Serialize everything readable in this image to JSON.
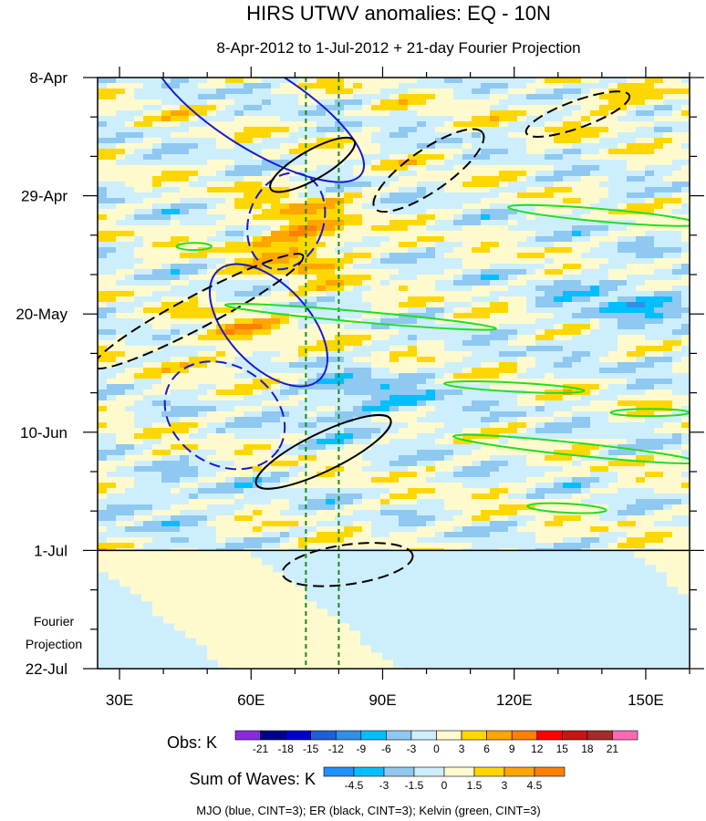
{
  "chart_data": {
    "type": "heatmap",
    "title": "HIRS UTWV anomalies: EQ - 10N",
    "subtitle": "8-Apr-2012 to 1-Jul-2012 + 21-day Fourier Projection",
    "xlim": [
      25,
      160
    ],
    "x_ticks": [
      {
        "value": 30,
        "label": "30E"
      },
      {
        "value": 60,
        "label": "60E"
      },
      {
        "value": 90,
        "label": "90E"
      },
      {
        "value": 120,
        "label": "120E"
      },
      {
        "value": 150,
        "label": "150E"
      }
    ],
    "y_ticks": [
      {
        "day": 0,
        "label": "8-Apr"
      },
      {
        "day": 21,
        "label": "29-Apr"
      },
      {
        "day": 42,
        "label": "20-May"
      },
      {
        "day": 63,
        "label": "10-Jun"
      },
      {
        "day": 84,
        "label": "1-Jul"
      },
      {
        "day": 105,
        "label": "22-Jul"
      }
    ],
    "projection_start_day": 84,
    "projection_label_line1": "Fourier",
    "projection_label_line2": "Projection",
    "reference_longitudes": [
      72.5,
      80
    ],
    "obs_colorbar": {
      "label": "Obs: K",
      "levels": [
        "-21",
        "-18",
        "-15",
        "-12",
        "-9",
        "-6",
        "-3",
        "0",
        "3",
        "6",
        "9",
        "12",
        "15",
        "18",
        "21"
      ],
      "colors": [
        "#8a2be2",
        "#00008b",
        "#0000cd",
        "#1e5fd8",
        "#2f8fe8",
        "#00bfff",
        "#8fc8f0",
        "#cdeefd",
        "#fffacd",
        "#ffd700",
        "#ffa500",
        "#ff7f00",
        "#ff0000",
        "#c71414",
        "#a52a2a",
        "#ff69b4"
      ]
    },
    "waves_colorbar": {
      "label": "Sum of Waves: K",
      "levels": [
        "-4.5",
        "-3",
        "-1.5",
        "0",
        "1.5",
        "3",
        "4.5"
      ],
      "colors": [
        "#1e90ff",
        "#00bfff",
        "#8fc8f0",
        "#cdeefd",
        "#fffacd",
        "#ffd700",
        "#ffa500",
        "#ff7f00"
      ]
    },
    "footer": "MJO (blue, CINT=3); ER (black, CINT=3); Kelvin (green, CINT=3)",
    "wave_colors": {
      "mjo": "#1a1ad0",
      "er": "#000000",
      "kelvin": "#22dd22"
    },
    "mjo_contours": [
      {
        "lon": 61.5,
        "day": 5.5,
        "rlon": 28,
        "rday": 4.5,
        "angle": 32,
        "dashed": false
      },
      {
        "lon": 68,
        "day": 25.5,
        "rlon": 8.5,
        "rday": 5.5,
        "angle": 20,
        "dashed": true
      },
      {
        "lon": 64,
        "day": 44,
        "rlon": 17,
        "rday": 4.5,
        "angle": 47,
        "dashed": false
      },
      {
        "lon": 54,
        "day": 60,
        "rlon": 14.5,
        "rday": 5.5,
        "angle": 32,
        "dashed": true
      }
    ],
    "er_contours": [
      {
        "lon": 74,
        "day": 15.5,
        "rlon": 11,
        "rday": 1.6,
        "angle": -30,
        "dashed": false
      },
      {
        "lon": 100.5,
        "day": 16.5,
        "rlon": 15,
        "rday": 2.3,
        "angle": -35,
        "dashed": true
      },
      {
        "lon": 134.5,
        "day": 6.5,
        "rlon": 12.5,
        "rday": 1.5,
        "angle": -20,
        "dashed": true
      },
      {
        "lon": 48,
        "day": 41.5,
        "rlon": 27,
        "rday": 1.8,
        "angle": -28,
        "dashed": true
      },
      {
        "lon": 76.5,
        "day": 66.5,
        "rlon": 17,
        "rday": 2.1,
        "angle": -26,
        "dashed": false
      },
      {
        "lon": 82,
        "day": 86.5,
        "rlon": 15,
        "rday": 2.2,
        "angle": -8,
        "dashed": true
      }
    ],
    "kelvin_contours": [
      {
        "lon": 85,
        "day": 42.5,
        "rlon": 31,
        "rday": 0.6,
        "angle": 5,
        "dashed": false
      },
      {
        "lon": 140.5,
        "day": 24.5,
        "rlon": 22,
        "rday": 0.7,
        "angle": 5,
        "dashed": false
      },
      {
        "lon": 120,
        "day": 55,
        "rlon": 16,
        "rday": 0.5,
        "angle": 3,
        "dashed": false
      },
      {
        "lon": 134,
        "day": 66,
        "rlon": 28,
        "rday": 0.7,
        "angle": 6,
        "dashed": false
      },
      {
        "lon": 132,
        "day": 76.5,
        "rlon": 9,
        "rday": 0.5,
        "angle": 3,
        "dashed": false
      },
      {
        "lon": 151,
        "day": 59.5,
        "rlon": 9,
        "rday": 0.4,
        "angle": 0,
        "dashed": false
      },
      {
        "lon": 47,
        "day": 30,
        "rlon": 4,
        "rday": 0.4,
        "angle": 0,
        "dashed": false
      }
    ]
  }
}
